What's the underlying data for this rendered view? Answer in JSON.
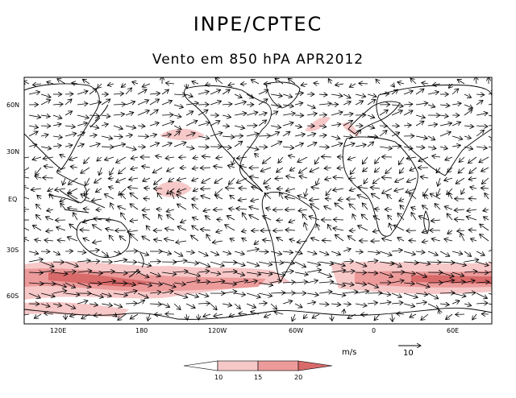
{
  "header": {
    "title": "INPE/CPTEC",
    "subtitle": "Vento em 850 hPA APR2012"
  },
  "map": {
    "lat_labels": [
      "60N",
      "30N",
      "EQ",
      "30S",
      "60S"
    ],
    "lon_labels": [
      "120E",
      "180",
      "120W",
      "60W",
      "0",
      "60E"
    ],
    "extent": {
      "lon_min": 90,
      "lon_max": 440,
      "lat_min": -78,
      "lat_max": 80
    },
    "shading_color_levels": [
      {
        "range": "10-15",
        "color": "#f7c8c8"
      },
      {
        "range": "15-20",
        "color": "#ec9a9a"
      },
      {
        "range": ">20",
        "color": "#d86a6a"
      }
    ]
  },
  "legend": {
    "units_label": "m/s",
    "ticks": [
      "10",
      "15",
      "20"
    ],
    "colors": [
      "#ffffff",
      "#f7c8c8",
      "#ec9a9a",
      "#d86a6a"
    ],
    "reference_vector_label": "10"
  }
}
